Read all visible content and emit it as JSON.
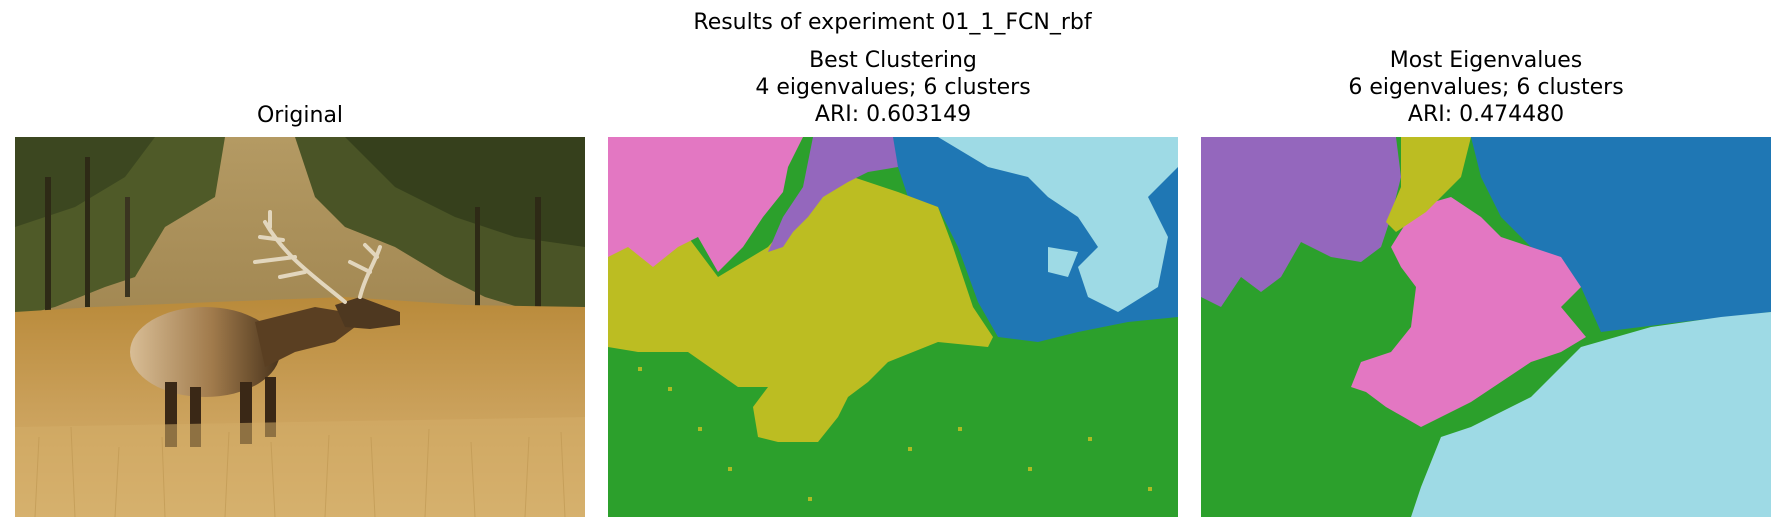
{
  "figure": {
    "suptitle": "Results of experiment 01_1_FCN_rbf"
  },
  "panels": [
    {
      "id": "original",
      "title_lines": [
        "Original"
      ]
    },
    {
      "id": "best",
      "title_lines": [
        "Best Clustering",
        "4 eigenvalues; 6 clusters",
        "ARI: 0.603149"
      ]
    },
    {
      "id": "most",
      "title_lines": [
        "Most Eigenvalues",
        "6 eigenvalues; 6 clusters",
        "ARI: 0.474480"
      ]
    }
  ],
  "colors": {
    "cluster_pink": "#e377c2",
    "cluster_purple": "#9467bd",
    "cluster_olive": "#bcbd22",
    "cluster_blue": "#1f77b4",
    "cluster_cyan": "#9edae5",
    "cluster_green": "#2ca02c"
  }
}
